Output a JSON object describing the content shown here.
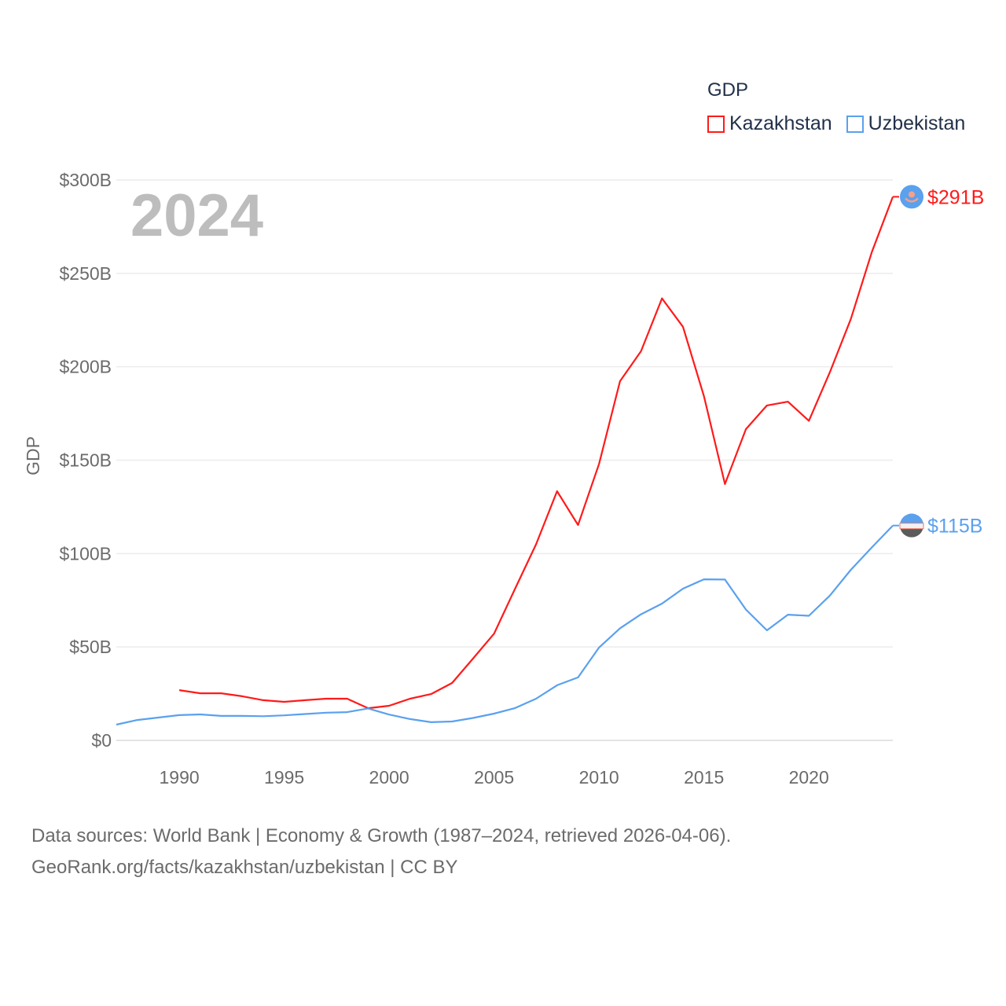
{
  "chart_data": {
    "type": "line",
    "title": "GDP",
    "ylabel": "GDP",
    "xlabel": "",
    "year_label": "2024",
    "xlim": [
      1987,
      2024
    ],
    "ylim": [
      0,
      300
    ],
    "x_ticks": [
      1990,
      1995,
      2000,
      2005,
      2010,
      2015,
      2020
    ],
    "x_tick_labels": [
      "1990",
      "1995",
      "2000",
      "2005",
      "2010",
      "2015",
      "2020"
    ],
    "y_ticks": [
      0,
      50,
      100,
      150,
      200,
      250,
      300
    ],
    "y_tick_labels": [
      "$0",
      "$50B",
      "$100B",
      "$150B",
      "$200B",
      "$250B",
      "$300B"
    ],
    "grid": true,
    "legend_placement": "top-right",
    "series": [
      {
        "name": "Kazakhstan",
        "color": "#ff1a1a",
        "end_label": "$291B",
        "x": [
          1990,
          1991,
          1992,
          1993,
          1994,
          1995,
          1996,
          1997,
          1998,
          1999,
          2000,
          2001,
          2002,
          2003,
          2004,
          2005,
          2006,
          2007,
          2008,
          2009,
          2010,
          2011,
          2012,
          2013,
          2014,
          2015,
          2016,
          2017,
          2018,
          2019,
          2020,
          2021,
          2022,
          2023,
          2024
        ],
        "values": [
          26.9,
          25.2,
          25.2,
          23.6,
          21.5,
          20.6,
          21.5,
          22.3,
          22.3,
          17.2,
          18.5,
          22.3,
          24.8,
          30.7,
          43.8,
          57.1,
          81.2,
          105,
          133.4,
          115.3,
          148,
          192.3,
          208.3,
          236.6,
          221.4,
          184.2,
          137.2,
          166.6,
          179.3,
          181.3,
          171.1,
          197.1,
          225.6,
          261.4,
          291
        ]
      },
      {
        "name": "Uzbekistan",
        "color": "#5aa1ee",
        "end_label": "$115B",
        "x": [
          1987,
          1988,
          1989,
          1990,
          1991,
          1992,
          1993,
          1994,
          1995,
          1996,
          1997,
          1998,
          1999,
          2000,
          2001,
          2002,
          2003,
          2004,
          2005,
          2006,
          2007,
          2008,
          2009,
          2010,
          2011,
          2012,
          2013,
          2014,
          2015,
          2016,
          2017,
          2018,
          2019,
          2020,
          2021,
          2022,
          2023,
          2024
        ],
        "values": [
          8.4,
          10.9,
          12.2,
          13.5,
          13.9,
          13.1,
          13.1,
          12.9,
          13.4,
          14.1,
          14.8,
          15.1,
          17.1,
          13.8,
          11.4,
          9.7,
          10.1,
          12,
          14.3,
          17.3,
          22.3,
          29.5,
          33.7,
          49.7,
          60,
          67.5,
          73.2,
          81.2,
          86.2,
          86.1,
          70,
          58.9,
          67.3,
          66.7,
          77.5,
          91.3,
          103.3,
          115
        ]
      }
    ],
    "footer": [
      "Data sources: World Bank | Economy & Growth (1987–2024, retrieved 2026-04-06).",
      "GeoRank.org/facts/kazakhstan/uzbekistan | CC BY"
    ]
  }
}
